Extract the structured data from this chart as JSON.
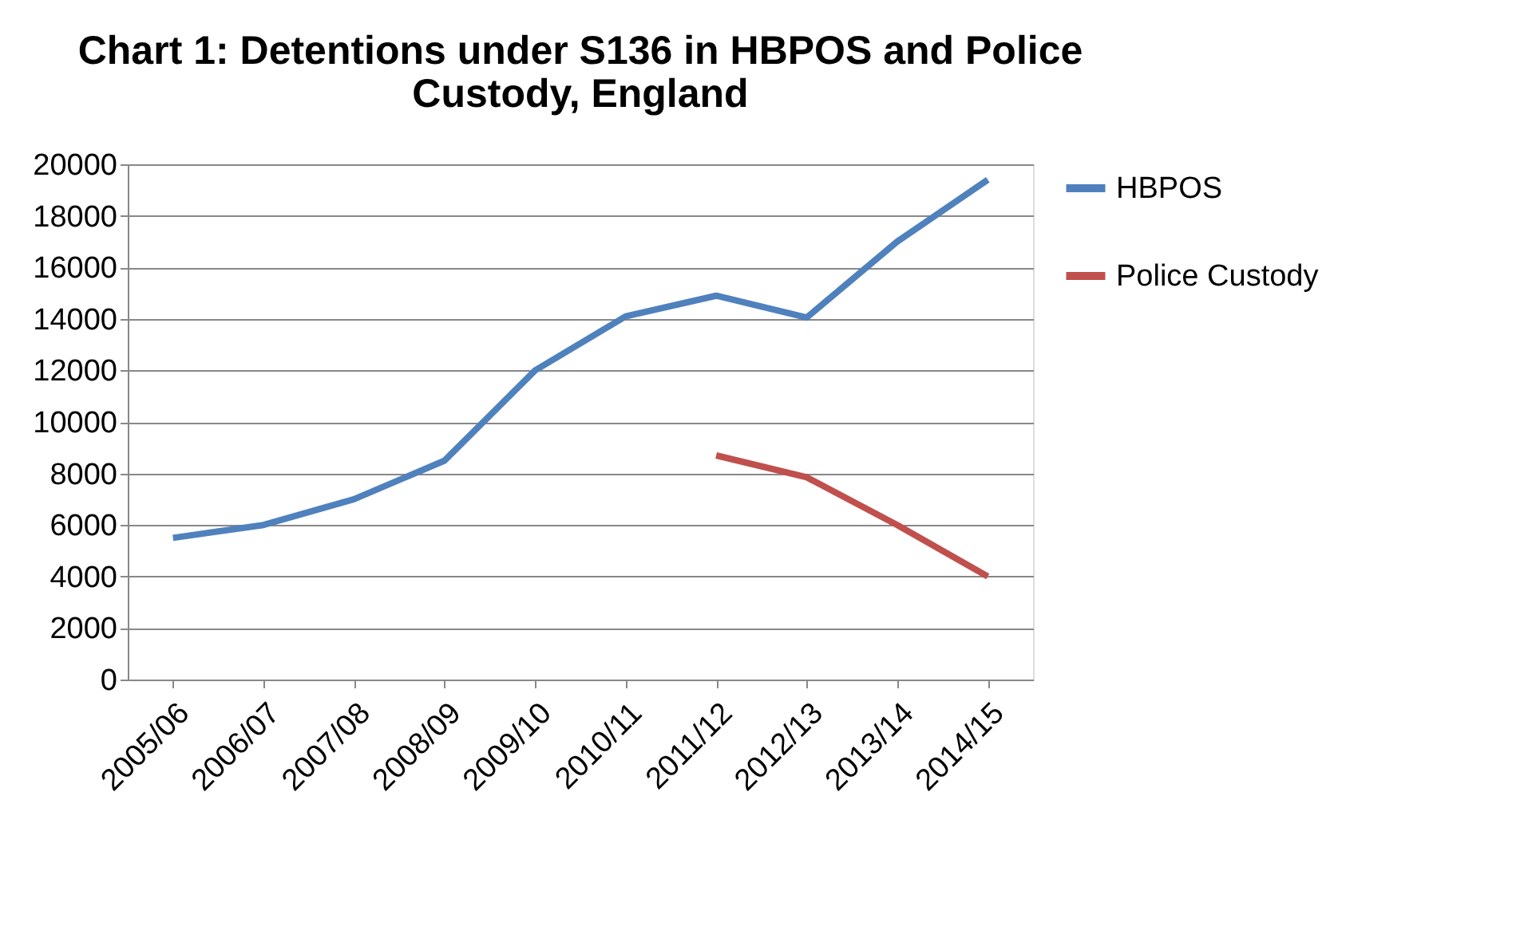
{
  "chart_data": {
    "type": "line",
    "title": [
      "Chart 1: Detentions under S136 in HBPOS and Police",
      "Custody, England"
    ],
    "categories": [
      "2005/06",
      "2006/07",
      "2007/08",
      "2008/09",
      "2009/10",
      "2010/11",
      "2011/12",
      "2012/13",
      "2013/14",
      "2014/15"
    ],
    "series": [
      {
        "name": "HBPOS",
        "color": "#4f81bd",
        "values": [
          5500,
          6000,
          7000,
          8500,
          12000,
          14100,
          14900,
          14050,
          17000,
          19400
        ]
      },
      {
        "name": "Police Custody",
        "color": "#c0504d",
        "values": [
          null,
          null,
          null,
          null,
          null,
          null,
          8700,
          7850,
          6000,
          4000
        ]
      }
    ],
    "ylim": [
      0,
      20000
    ],
    "yticks": [
      0,
      2000,
      4000,
      6000,
      8000,
      10000,
      12000,
      14000,
      16000,
      18000,
      20000
    ],
    "grid": "y",
    "legend": "right",
    "marker": "none",
    "line_style": "solid"
  }
}
